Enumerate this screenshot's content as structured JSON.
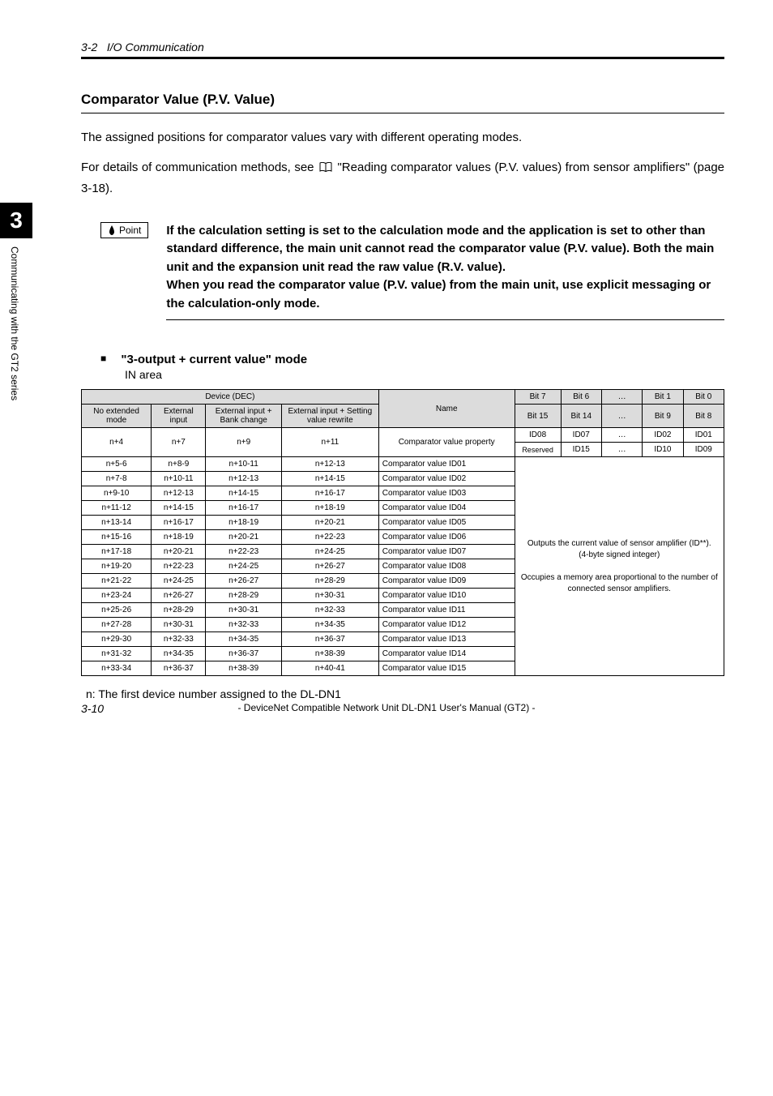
{
  "side": {
    "number": "3",
    "text": "Communicating with the GT2 series"
  },
  "header": {
    "section": "3-2",
    "title": "I/O Communication"
  },
  "comparator": {
    "title": "Comparator Value (P.V. Value)",
    "p1": "The assigned positions for comparator values vary with different operating modes.",
    "p2a": "For details of communication methods, see ",
    "p2b": " \"Reading comparator values (P.V. values) from sensor amplifiers\" (page 3-18)."
  },
  "point": {
    "label": "Point",
    "text": "If the calculation setting is set to the calculation mode and the application is set to other than standard difference, the main unit cannot read the comparator value (P.V. value). Both the main unit and the expansion unit read the raw value (R.V. value).\nWhen you read the comparator value (P.V. value) from the main unit, use explicit messaging or the calculation-only mode."
  },
  "mode": {
    "heading": "\"3-output + current value\" mode",
    "inarea": "IN area"
  },
  "table": {
    "device_hdr": "Device (DEC)",
    "name_hdr": "Name",
    "bits_top": [
      "Bit 7",
      "Bit 6",
      "…",
      "Bit 1",
      "Bit 0"
    ],
    "bits_bot": [
      "Bit 15",
      "Bit 14",
      "…",
      "Bit 9",
      "Bit 8"
    ],
    "dev_hdrs": [
      "No extended mode",
      "External input",
      "External input + Bank change",
      "External input + Setting value rewrite"
    ],
    "prop_row": {
      "devs": [
        "n+4",
        "n+7",
        "n+9",
        "n+11"
      ],
      "name": "Comparator value property",
      "row1": [
        "ID08",
        "ID07",
        "…",
        "ID02",
        "ID01"
      ],
      "row2": [
        "Reserved",
        "ID15",
        "…",
        "ID10",
        "ID09"
      ]
    },
    "rows": [
      {
        "devs": [
          "n+5-6",
          "n+8-9",
          "n+10-11",
          "n+12-13"
        ],
        "name": "Comparator value ID01"
      },
      {
        "devs": [
          "n+7-8",
          "n+10-11",
          "n+12-13",
          "n+14-15"
        ],
        "name": "Comparator value ID02"
      },
      {
        "devs": [
          "n+9-10",
          "n+12-13",
          "n+14-15",
          "n+16-17"
        ],
        "name": "Comparator value ID03"
      },
      {
        "devs": [
          "n+11-12",
          "n+14-15",
          "n+16-17",
          "n+18-19"
        ],
        "name": "Comparator value ID04"
      },
      {
        "devs": [
          "n+13-14",
          "n+16-17",
          "n+18-19",
          "n+20-21"
        ],
        "name": "Comparator value ID05"
      },
      {
        "devs": [
          "n+15-16",
          "n+18-19",
          "n+20-21",
          "n+22-23"
        ],
        "name": "Comparator value ID06"
      },
      {
        "devs": [
          "n+17-18",
          "n+20-21",
          "n+22-23",
          "n+24-25"
        ],
        "name": "Comparator value ID07"
      },
      {
        "devs": [
          "n+19-20",
          "n+22-23",
          "n+24-25",
          "n+26-27"
        ],
        "name": "Comparator value ID08"
      },
      {
        "devs": [
          "n+21-22",
          "n+24-25",
          "n+26-27",
          "n+28-29"
        ],
        "name": "Comparator value ID09"
      },
      {
        "devs": [
          "n+23-24",
          "n+26-27",
          "n+28-29",
          "n+30-31"
        ],
        "name": "Comparator value ID10"
      },
      {
        "devs": [
          "n+25-26",
          "n+28-29",
          "n+30-31",
          "n+32-33"
        ],
        "name": "Comparator value ID11"
      },
      {
        "devs": [
          "n+27-28",
          "n+30-31",
          "n+32-33",
          "n+34-35"
        ],
        "name": "Comparator value ID12"
      },
      {
        "devs": [
          "n+29-30",
          "n+32-33",
          "n+34-35",
          "n+36-37"
        ],
        "name": "Comparator value ID13"
      },
      {
        "devs": [
          "n+31-32",
          "n+34-35",
          "n+36-37",
          "n+38-39"
        ],
        "name": "Comparator value ID14"
      },
      {
        "devs": [
          "n+33-34",
          "n+36-37",
          "n+38-39",
          "n+40-41"
        ],
        "name": "Comparator value ID15"
      }
    ],
    "desc": "Outputs the current value of sensor amplifier (ID**).\n(4-byte signed integer)\n\nOccupies a memory area proportional to the number of connected sensor amplifiers.",
    "footnote": "n: The first device number assigned to the DL-DN1"
  },
  "footer": {
    "page": "3-10",
    "text": "- DeviceNet Compatible Network Unit DL-DN1 User's Manual (GT2) -"
  },
  "colors": {
    "gray": "#dcdcdc"
  }
}
